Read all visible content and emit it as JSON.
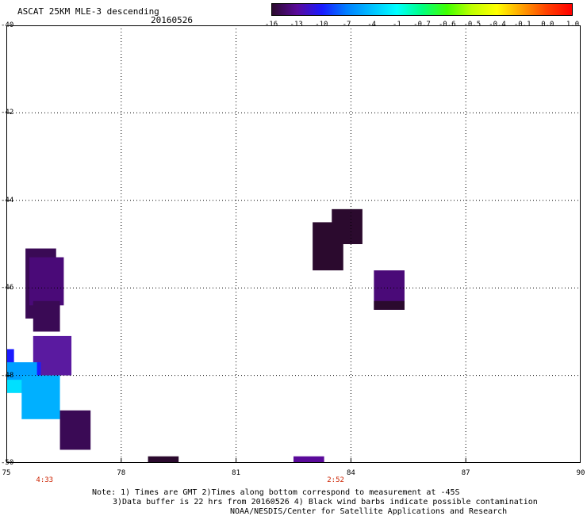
{
  "header": {
    "title": "ASCAT 25KM MLE-3 descending",
    "date": "20160526"
  },
  "colorbar": {
    "labels": [
      "-16",
      "-13",
      "-10",
      "-7",
      "-4",
      "-1",
      "-0.7",
      "-0.6",
      "-0.5",
      "-0.4",
      "-0.1",
      "0.0",
      "1.0"
    ],
    "colors": [
      "#2b0a2e",
      "#5a0a9a",
      "#1a1aff",
      "#0080ff",
      "#00c0ff",
      "#00ffff",
      "#00ff80",
      "#40ff00",
      "#c0ff00",
      "#ffff00",
      "#ffa000",
      "#ff4000",
      "#ff0000"
    ]
  },
  "axes": {
    "x_ticks": [
      "75",
      "78",
      "81",
      "84",
      "87",
      "90"
    ],
    "y_ticks": [
      "-40",
      "-42",
      "-44",
      "-46",
      "-48",
      "-50"
    ],
    "xlim": [
      75,
      90
    ],
    "ylim": [
      -50,
      -40
    ]
  },
  "times": [
    {
      "label": "4:33",
      "lon": 76
    },
    {
      "label": "2:52",
      "lon": 83.6
    }
  ],
  "data_cells": [
    {
      "lon0": 75.5,
      "lon1": 76.3,
      "lat0": -46.7,
      "lat1": -45.1,
      "color": "#3a0a55"
    },
    {
      "lon0": 75.6,
      "lon1": 76.5,
      "lat0": -46.4,
      "lat1": -45.3,
      "color": "#4a0a78"
    },
    {
      "lon0": 75.7,
      "lon1": 76.4,
      "lat0": -47.0,
      "lat1": -46.3,
      "color": "#3a0a55"
    },
    {
      "lon0": 75.7,
      "lon1": 76.7,
      "lat0": -48.0,
      "lat1": -47.1,
      "color": "#5a1aa0"
    },
    {
      "lon0": 75.0,
      "lon1": 75.2,
      "lat0": -48.0,
      "lat1": -47.4,
      "color": "#1a1aff"
    },
    {
      "lon0": 75.0,
      "lon1": 75.9,
      "lat0": -48.4,
      "lat1": -47.7,
      "color": "#00a0ff"
    },
    {
      "lon0": 75.0,
      "lon1": 75.5,
      "lat0": -48.4,
      "lat1": -48.1,
      "color": "#00e0ff"
    },
    {
      "lon0": 75.4,
      "lon1": 76.4,
      "lat0": -49.0,
      "lat1": -48.0,
      "color": "#00b0ff"
    },
    {
      "lon0": 75.8,
      "lon1": 75.9,
      "lat0": -48.0,
      "lat1": -47.7,
      "color": "#1a1aff"
    },
    {
      "lon0": 76.4,
      "lon1": 77.2,
      "lat0": -49.7,
      "lat1": -48.8,
      "color": "#3a0a55"
    },
    {
      "lon0": 78.7,
      "lon1": 79.5,
      "lat0": -50.0,
      "lat1": -49.85,
      "color": "#2b0a2e"
    },
    {
      "lon0": 82.5,
      "lon1": 83.3,
      "lat0": -50.0,
      "lat1": -49.85,
      "color": "#5a0a9a"
    },
    {
      "lon0": 83.0,
      "lon1": 83.8,
      "lat0": -45.6,
      "lat1": -44.5,
      "color": "#2b0a2e"
    },
    {
      "lon0": 83.5,
      "lon1": 84.3,
      "lat0": -45.0,
      "lat1": -44.2,
      "color": "#2b0a2e"
    },
    {
      "lon0": 84.6,
      "lon1": 85.4,
      "lat0": -46.5,
      "lat1": -45.6,
      "color": "#4a0a78"
    },
    {
      "lon0": 84.6,
      "lon1": 85.4,
      "lat0": -46.5,
      "lat1": -46.3,
      "color": "#2b0a2e"
    }
  ],
  "notes": {
    "line1": "Note: 1) Times are GMT 2)Times along bottom correspond to measurement at -45S",
    "line2": "3)Data buffer is 22 hrs from 20160526 4) Black wind barbs indicate possible contamination",
    "line3": "NOAA/NESDIS/Center for Satellite Applications and Research"
  }
}
